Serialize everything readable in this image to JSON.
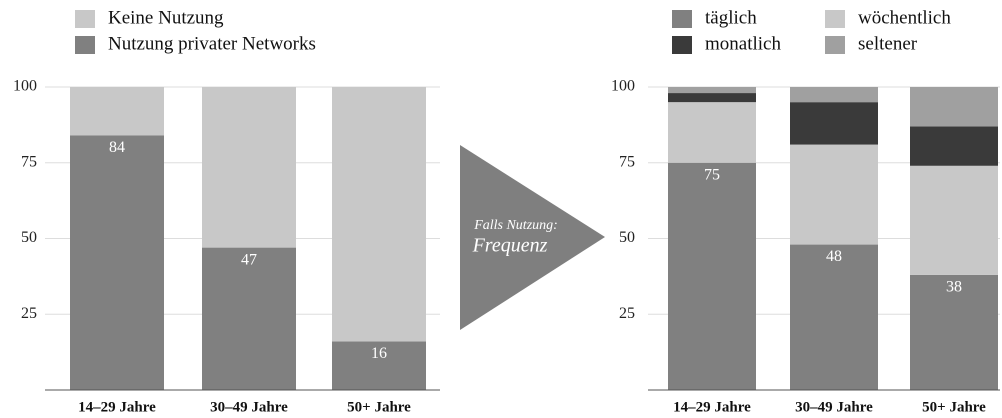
{
  "chart_data": [
    {
      "type": "stacked_bar",
      "categories": [
        "14–29 Jahre",
        "30–49 Jahre",
        "50+ Jahre"
      ],
      "series": [
        {
          "name": "Nutzung privater Networks",
          "color": "#808080",
          "values": [
            84,
            47,
            16
          ],
          "show_labels": true
        },
        {
          "name": "Keine Nutzung",
          "color": "#c8c8c8",
          "values": [
            16,
            53,
            84
          ]
        }
      ],
      "legend_reverse": true,
      "ylim": [
        0,
        100
      ],
      "yticks": [
        25,
        50,
        75,
        100
      ],
      "grid": true
    },
    {
      "type": "stacked_bar",
      "categories": [
        "14–29 Jahre",
        "30–49 Jahre",
        "50+ Jahre"
      ],
      "series": [
        {
          "name": "täglich",
          "color": "#808080",
          "values": [
            75,
            48,
            38
          ],
          "show_labels": true
        },
        {
          "name": "wöchentlich",
          "color": "#c8c8c8",
          "values": [
            20,
            33,
            36
          ]
        },
        {
          "name": "monatlich",
          "color": "#3a3a3a",
          "values": [
            3,
            14,
            13
          ]
        },
        {
          "name": "seltener",
          "color": "#a0a0a0",
          "values": [
            2,
            5,
            13
          ]
        }
      ],
      "legend_reverse": false,
      "ylim": [
        0,
        100
      ],
      "yticks": [
        25,
        50,
        75,
        100
      ],
      "grid": true
    }
  ],
  "arrow": {
    "line1": "Falls Nutzung:",
    "line2": "Frequenz"
  }
}
